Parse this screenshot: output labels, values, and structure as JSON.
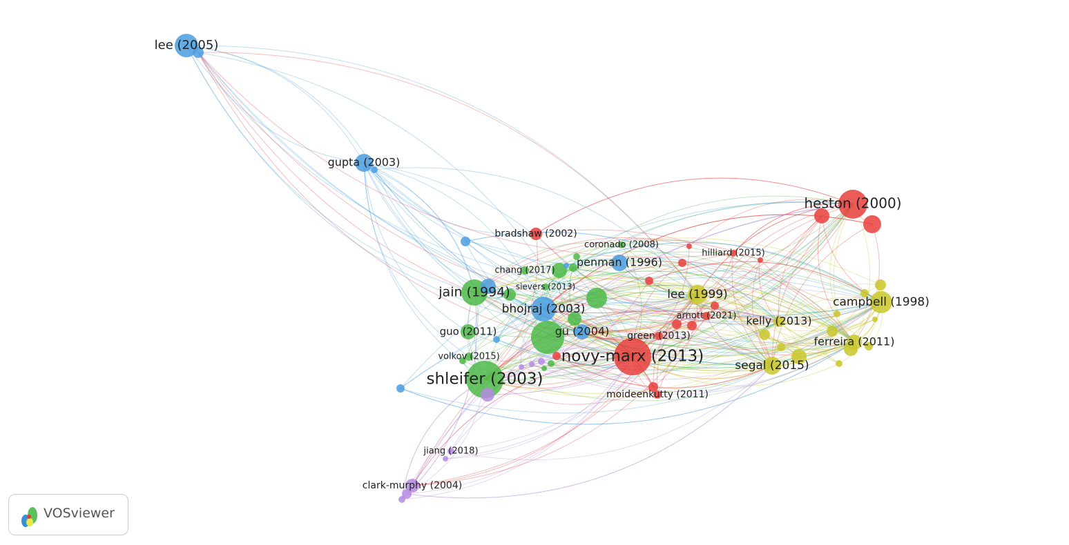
{
  "nodes": [
    {
      "label": "lee (2005)"
    },
    {
      "label": "gupta (2003)"
    },
    {
      "label": "heston (2000)"
    },
    {
      "label": "bradshaw (2002)"
    },
    {
      "label": "coronado (2008)"
    },
    {
      "label": "hilliard (2015)"
    },
    {
      "label": "penman (1996)"
    },
    {
      "label": "chang (2017)"
    },
    {
      "label": "sievers (2013)"
    },
    {
      "label": "jain (1994)"
    },
    {
      "label": "lee (1999)"
    },
    {
      "label": "bhojraj (2003)"
    },
    {
      "label": "campbell (1998)"
    },
    {
      "label": "arnott (2021)"
    },
    {
      "label": "kelly (2013)"
    },
    {
      "label": "guo (2011)"
    },
    {
      "label": "gu (2004)"
    },
    {
      "label": "green (2013)"
    },
    {
      "label": "ferreira (2011)"
    },
    {
      "label": "volkov (2015)"
    },
    {
      "label": "novy-marx (2013)"
    },
    {
      "label": "segal (2015)"
    },
    {
      "label": "shleifer (2003)"
    },
    {
      "label": "moideenkutty (2011)"
    },
    {
      "label": "jiang (2018)"
    },
    {
      "label": "clark-murphy (2004)"
    }
  ],
  "logo": "VOSviewer"
}
